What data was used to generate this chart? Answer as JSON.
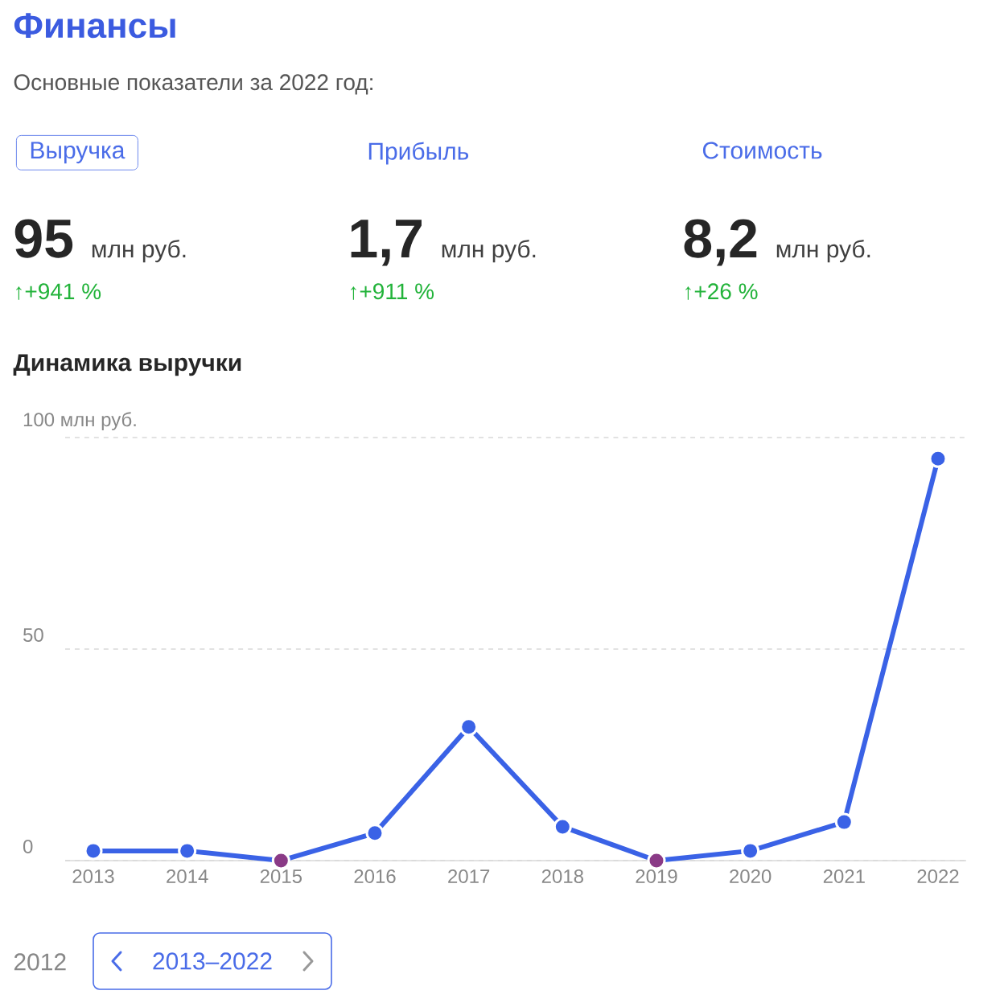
{
  "chart_data": [
    {
      "type": "other",
      "title": "Финансы",
      "subtitle": "Основные показатели за 2022 год:",
      "annotations": [
        "Выручка",
        "95",
        "млн руб.",
        "↑+941 %",
        "Прибыль",
        "1,7",
        "млн руб.",
        "↑+911 %",
        "Стоимость",
        "8,2",
        "млн руб.",
        "↑+26 %"
      ]
    },
    {
      "type": "line",
      "title": "Динамика выручки",
      "categories": [
        "2013",
        "2014",
        "2015",
        "2016",
        "2017",
        "2018",
        "2019",
        "2020",
        "2021",
        "2022"
      ],
      "values": [
        2.3,
        2.3,
        0,
        6.5,
        31.6,
        8,
        0,
        2.3,
        9.1,
        95
      ],
      "color": "#3a62e6",
      "colors": [
        "#3a62e6",
        "#3a62e6",
        "#8a3a86",
        "#3a62e6",
        "#3a62e6",
        "#3a62e6",
        "#8a3a86",
        "#3a62e6",
        "#3a62e6",
        "#3a62e6"
      ],
      "marker": "circle",
      "grid": "y",
      "ylim": [
        0,
        100
      ],
      "yticks": [
        0,
        50,
        {
          "value": 100,
          "label": "100 млн руб."
        }
      ],
      "annotations": [
        "2012",
        "2013–2022"
      ]
    }
  ]
}
